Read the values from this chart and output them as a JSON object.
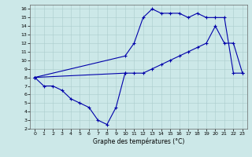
{
  "title": "Graphe des températures (°C)",
  "bg_color": "#cce8e8",
  "line_color": "#0000aa",
  "xlim": [
    -0.5,
    23.5
  ],
  "ylim": [
    2,
    16.5
  ],
  "xticks": [
    0,
    1,
    2,
    3,
    4,
    5,
    6,
    7,
    8,
    9,
    10,
    11,
    12,
    13,
    14,
    15,
    16,
    17,
    18,
    19,
    20,
    21,
    22,
    23
  ],
  "yticks": [
    2,
    3,
    4,
    5,
    6,
    7,
    8,
    9,
    10,
    11,
    12,
    13,
    14,
    15,
    16
  ],
  "line1_x": [
    0,
    1,
    2,
    3,
    4,
    5,
    6,
    7,
    8,
    9,
    10
  ],
  "line1_y": [
    8,
    7,
    7,
    6.5,
    5.5,
    5.0,
    4.5,
    3.0,
    2.5,
    4.5,
    8.5
  ],
  "line2_x": [
    0,
    10,
    11,
    12,
    13,
    14,
    15,
    16,
    17,
    18,
    19,
    20,
    21,
    22,
    23
  ],
  "line2_y": [
    8,
    8.5,
    8.5,
    8.5,
    9.0,
    9.5,
    10.0,
    10.5,
    11.0,
    11.5,
    12.0,
    14.0,
    12.0,
    12.0,
    8.5
  ],
  "line3_x": [
    0,
    10,
    11,
    12,
    13,
    14,
    15,
    16,
    17,
    18,
    19,
    20,
    21,
    22,
    23
  ],
  "line3_y": [
    8,
    10.5,
    12.0,
    15.0,
    16.0,
    15.5,
    15.5,
    15.5,
    15.0,
    15.5,
    15.0,
    15.0,
    15.0,
    8.5,
    8.5
  ]
}
